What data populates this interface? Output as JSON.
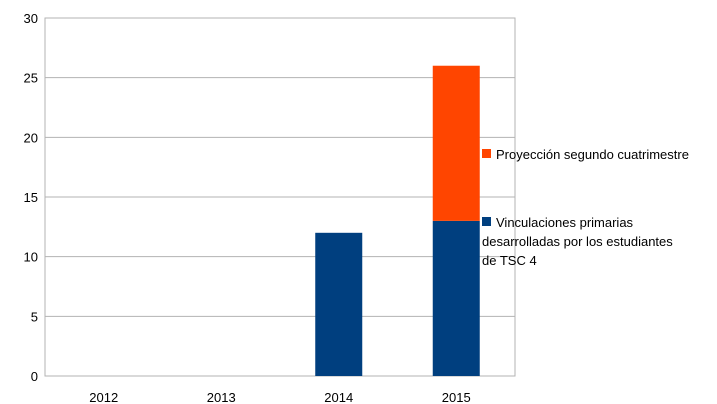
{
  "chart_data": {
    "type": "bar",
    "stacked": true,
    "categories": [
      "2012",
      "2013",
      "2014",
      "2015"
    ],
    "ylim": [
      0,
      30
    ],
    "yticks": [
      0,
      5,
      10,
      15,
      20,
      25,
      30
    ],
    "grid": true,
    "legend_placement": "right",
    "series": [
      {
        "name_lines": [
          "Vinculaciones primarias",
          "desarrolladas por los estudiantes",
          "de TSC 4"
        ],
        "color": "#003f7f",
        "values": [
          0,
          0,
          12,
          13
        ]
      },
      {
        "name_lines": [
          "Proyección segundo cuatrimestre"
        ],
        "color": "#ff4500",
        "values": [
          0,
          0,
          0,
          13
        ]
      }
    ]
  }
}
